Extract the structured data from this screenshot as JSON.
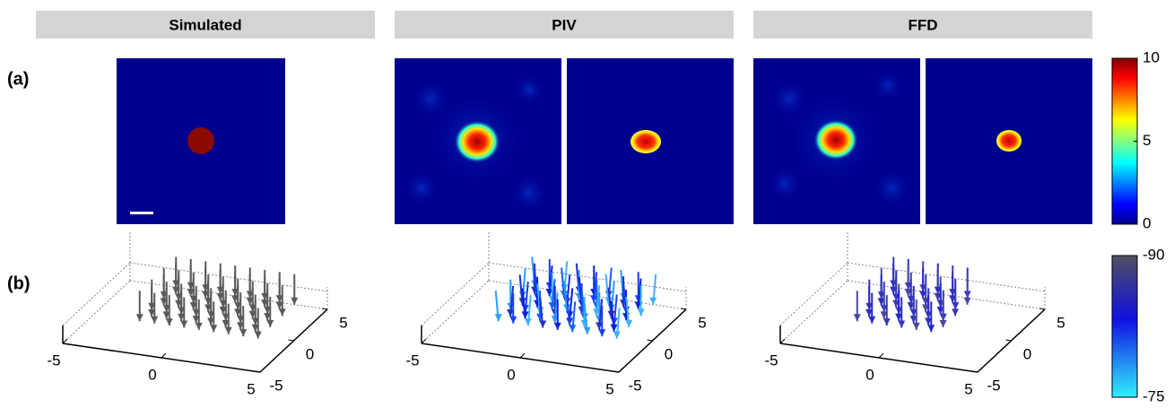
{
  "headers": [
    "Simulated",
    "PIV",
    "FFD"
  ],
  "row_labels": [
    "(a)",
    "(b)"
  ],
  "colorbars": [
    {
      "lim": [
        10,
        0
      ],
      "ticks": [
        10,
        5,
        0
      ]
    },
    {
      "lim": [
        -90,
        -75
      ],
      "ticks": [
        -90,
        -75
      ]
    }
  ],
  "quiver_panels": [
    {
      "xlim": [
        -5,
        5
      ],
      "ylim": [
        -5,
        5
      ],
      "xticks": [
        -5,
        0,
        5
      ],
      "yticks": [
        -5,
        0,
        5
      ]
    },
    {
      "xlim": [
        -5,
        5
      ],
      "ylim": [
        -5,
        5
      ],
      "xticks": [
        -5,
        0,
        5
      ],
      "yticks": [
        -5,
        0,
        5
      ]
    },
    {
      "xlim": [
        -5,
        5
      ],
      "ylim": [
        -5,
        5
      ],
      "xticks": [
        -5,
        0,
        5
      ],
      "yticks": [
        -5,
        0,
        5
      ]
    }
  ]
}
